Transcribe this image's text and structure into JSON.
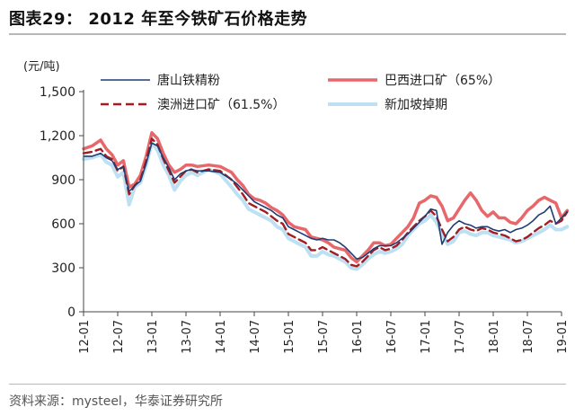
{
  "figure": {
    "title": "图表29： 2012 年至今铁矿石价格走势",
    "source": "资料来源：mysteel，华泰证券研究所"
  },
  "chart_data": {
    "type": "line",
    "y_unit_label": "(元/吨)",
    "ylim": [
      0,
      1500
    ],
    "y_ticks": [
      "0",
      "300",
      "600",
      "900",
      "1,200",
      "1,500"
    ],
    "x_ticks": [
      "12-01",
      "12-07",
      "13-01",
      "13-07",
      "14-01",
      "14-07",
      "15-01",
      "15-07",
      "16-01",
      "16-07",
      "17-01",
      "17-07",
      "18-01",
      "18-07",
      "19-01"
    ],
    "grid": false,
    "legend_position": "top",
    "colors": {
      "tangshan": "#1f3d73",
      "brazil": "#e8676b",
      "australia": "#a11d21",
      "singapore": "#bde0f2",
      "axis": "#444444"
    },
    "x_unit": "months since 2012-01",
    "series": [
      {
        "key": "brazil",
        "name": "巴西进口矿（65%）",
        "points": [
          [
            0,
            1110
          ],
          [
            1.5,
            1130
          ],
          [
            3,
            1170
          ],
          [
            4,
            1110
          ],
          [
            5,
            1070
          ],
          [
            6,
            1000
          ],
          [
            7,
            1030
          ],
          [
            8,
            850
          ],
          [
            9,
            870
          ],
          [
            10,
            930
          ],
          [
            11,
            1060
          ],
          [
            12,
            1220
          ],
          [
            13,
            1180
          ],
          [
            14,
            1080
          ],
          [
            15,
            1000
          ],
          [
            16,
            950
          ],
          [
            17,
            970
          ],
          [
            18,
            1000
          ],
          [
            19,
            1000
          ],
          [
            20,
            990
          ],
          [
            22,
            1000
          ],
          [
            24,
            990
          ],
          [
            26,
            950
          ],
          [
            27,
            900
          ],
          [
            28,
            860
          ],
          [
            29,
            800
          ],
          [
            30,
            770
          ],
          [
            31,
            760
          ],
          [
            32,
            740
          ],
          [
            33,
            710
          ],
          [
            34,
            690
          ],
          [
            35,
            660
          ],
          [
            36,
            610
          ],
          [
            37,
            580
          ],
          [
            38,
            570
          ],
          [
            39,
            560
          ],
          [
            40,
            510
          ],
          [
            41,
            500
          ],
          [
            42,
            490
          ],
          [
            43,
            470
          ],
          [
            44,
            440
          ],
          [
            45,
            430
          ],
          [
            46,
            420
          ],
          [
            47,
            370
          ],
          [
            48,
            340
          ],
          [
            49,
            380
          ],
          [
            50,
            420
          ],
          [
            51,
            470
          ],
          [
            52,
            470
          ],
          [
            53,
            450
          ],
          [
            54,
            460
          ],
          [
            55,
            500
          ],
          [
            56,
            540
          ],
          [
            57,
            580
          ],
          [
            58,
            640
          ],
          [
            59,
            740
          ],
          [
            60,
            760
          ],
          [
            61,
            790
          ],
          [
            62,
            780
          ],
          [
            63,
            720
          ],
          [
            64,
            620
          ],
          [
            65,
            640
          ],
          [
            66,
            700
          ],
          [
            67,
            760
          ],
          [
            68,
            810
          ],
          [
            69,
            760
          ],
          [
            70,
            690
          ],
          [
            71,
            650
          ],
          [
            72,
            680
          ],
          [
            73,
            640
          ],
          [
            74,
            640
          ],
          [
            75,
            610
          ],
          [
            76,
            600
          ],
          [
            77,
            640
          ],
          [
            78,
            690
          ],
          [
            79,
            720
          ],
          [
            80,
            760
          ],
          [
            81,
            780
          ],
          [
            82,
            760
          ],
          [
            83,
            740
          ],
          [
            84,
            640
          ],
          [
            85,
            690
          ]
        ]
      },
      {
        "key": "singapore",
        "name": "新加坡掉期",
        "points": [
          [
            0,
            1040
          ],
          [
            1.5,
            1050
          ],
          [
            3,
            1070
          ],
          [
            4,
            1020
          ],
          [
            5,
            1000
          ],
          [
            6,
            920
          ],
          [
            7,
            950
          ],
          [
            8,
            730
          ],
          [
            9,
            850
          ],
          [
            10,
            880
          ],
          [
            11,
            1000
          ],
          [
            12,
            1150
          ],
          [
            13,
            1100
          ],
          [
            14,
            1000
          ],
          [
            15,
            930
          ],
          [
            16,
            830
          ],
          [
            17,
            890
          ],
          [
            18,
            930
          ],
          [
            19,
            950
          ],
          [
            20,
            930
          ],
          [
            22,
            970
          ],
          [
            24,
            940
          ],
          [
            26,
            850
          ],
          [
            27,
            800
          ],
          [
            28,
            760
          ],
          [
            29,
            700
          ],
          [
            30,
            680
          ],
          [
            31,
            660
          ],
          [
            32,
            640
          ],
          [
            33,
            620
          ],
          [
            34,
            580
          ],
          [
            35,
            560
          ],
          [
            36,
            500
          ],
          [
            37,
            480
          ],
          [
            38,
            460
          ],
          [
            39,
            440
          ],
          [
            40,
            380
          ],
          [
            41,
            380
          ],
          [
            42,
            410
          ],
          [
            43,
            390
          ],
          [
            44,
            380
          ],
          [
            45,
            360
          ],
          [
            46,
            340
          ],
          [
            47,
            300
          ],
          [
            48,
            290
          ],
          [
            49,
            320
          ],
          [
            50,
            360
          ],
          [
            51,
            390
          ],
          [
            52,
            410
          ],
          [
            53,
            400
          ],
          [
            54,
            410
          ],
          [
            55,
            430
          ],
          [
            56,
            460
          ],
          [
            57,
            520
          ],
          [
            58,
            560
          ],
          [
            59,
            600
          ],
          [
            60,
            620
          ],
          [
            61,
            660
          ],
          [
            62,
            610
          ],
          [
            63,
            530
          ],
          [
            64,
            460
          ],
          [
            65,
            480
          ],
          [
            66,
            540
          ],
          [
            67,
            550
          ],
          [
            68,
            530
          ],
          [
            69,
            520
          ],
          [
            70,
            540
          ],
          [
            71,
            540
          ],
          [
            72,
            520
          ],
          [
            73,
            510
          ],
          [
            74,
            500
          ],
          [
            75,
            490
          ],
          [
            76,
            470
          ],
          [
            77,
            480
          ],
          [
            78,
            500
          ],
          [
            79,
            520
          ],
          [
            80,
            540
          ],
          [
            81,
            560
          ],
          [
            82,
            590
          ],
          [
            83,
            560
          ],
          [
            84,
            560
          ],
          [
            85,
            580
          ]
        ]
      },
      {
        "key": "australia",
        "name": "澳洲进口矿（61.5%）",
        "points": [
          [
            0,
            1080
          ],
          [
            1.5,
            1090
          ],
          [
            3,
            1110
          ],
          [
            4,
            1060
          ],
          [
            5,
            1040
          ],
          [
            6,
            960
          ],
          [
            7,
            990
          ],
          [
            8,
            800
          ],
          [
            9,
            860
          ],
          [
            10,
            900
          ],
          [
            11,
            1030
          ],
          [
            12,
            1180
          ],
          [
            13,
            1140
          ],
          [
            14,
            1040
          ],
          [
            15,
            960
          ],
          [
            16,
            880
          ],
          [
            17,
            920
          ],
          [
            18,
            960
          ],
          [
            19,
            970
          ],
          [
            20,
            950
          ],
          [
            22,
            970
          ],
          [
            24,
            960
          ],
          [
            26,
            900
          ],
          [
            27,
            850
          ],
          [
            28,
            800
          ],
          [
            29,
            740
          ],
          [
            30,
            720
          ],
          [
            31,
            700
          ],
          [
            32,
            680
          ],
          [
            33,
            650
          ],
          [
            34,
            620
          ],
          [
            35,
            600
          ],
          [
            36,
            530
          ],
          [
            37,
            510
          ],
          [
            38,
            490
          ],
          [
            39,
            470
          ],
          [
            40,
            420
          ],
          [
            41,
            420
          ],
          [
            42,
            440
          ],
          [
            43,
            420
          ],
          [
            44,
            400
          ],
          [
            45,
            380
          ],
          [
            46,
            360
          ],
          [
            47,
            320
          ],
          [
            48,
            310
          ],
          [
            49,
            340
          ],
          [
            50,
            380
          ],
          [
            51,
            420
          ],
          [
            52,
            440
          ],
          [
            53,
            420
          ],
          [
            54,
            430
          ],
          [
            55,
            450
          ],
          [
            56,
            490
          ],
          [
            57,
            540
          ],
          [
            58,
            580
          ],
          [
            59,
            620
          ],
          [
            60,
            650
          ],
          [
            61,
            690
          ],
          [
            62,
            650
          ],
          [
            63,
            560
          ],
          [
            64,
            480
          ],
          [
            65,
            510
          ],
          [
            66,
            560
          ],
          [
            67,
            580
          ],
          [
            68,
            560
          ],
          [
            69,
            550
          ],
          [
            70,
            570
          ],
          [
            71,
            560
          ],
          [
            72,
            540
          ],
          [
            73,
            530
          ],
          [
            74,
            520
          ],
          [
            75,
            500
          ],
          [
            76,
            480
          ],
          [
            77,
            490
          ],
          [
            78,
            510
          ],
          [
            79,
            540
          ],
          [
            80,
            570
          ],
          [
            81,
            590
          ],
          [
            82,
            620
          ],
          [
            83,
            600
          ],
          [
            84,
            620
          ],
          [
            85,
            680
          ]
        ]
      },
      {
        "key": "tangshan",
        "name": "唐山铁精粉",
        "points": [
          [
            0,
            1060
          ],
          [
            1.5,
            1060
          ],
          [
            3,
            1080
          ],
          [
            4,
            1050
          ],
          [
            5,
            1030
          ],
          [
            6,
            970
          ],
          [
            7,
            990
          ],
          [
            8,
            820
          ],
          [
            9,
            860
          ],
          [
            10,
            890
          ],
          [
            11,
            1010
          ],
          [
            12,
            1150
          ],
          [
            13,
            1130
          ],
          [
            14,
            1050
          ],
          [
            15,
            980
          ],
          [
            16,
            900
          ],
          [
            17,
            940
          ],
          [
            18,
            960
          ],
          [
            19,
            970
          ],
          [
            20,
            960
          ],
          [
            22,
            960
          ],
          [
            24,
            950
          ],
          [
            26,
            900
          ],
          [
            27,
            870
          ],
          [
            28,
            830
          ],
          [
            29,
            790
          ],
          [
            30,
            750
          ],
          [
            31,
            730
          ],
          [
            32,
            710
          ],
          [
            33,
            690
          ],
          [
            34,
            660
          ],
          [
            35,
            640
          ],
          [
            36,
            580
          ],
          [
            37,
            560
          ],
          [
            38,
            540
          ],
          [
            39,
            520
          ],
          [
            40,
            500
          ],
          [
            41,
            490
          ],
          [
            42,
            500
          ],
          [
            43,
            490
          ],
          [
            44,
            490
          ],
          [
            45,
            470
          ],
          [
            46,
            440
          ],
          [
            47,
            400
          ],
          [
            48,
            360
          ],
          [
            49,
            370
          ],
          [
            50,
            400
          ],
          [
            51,
            430
          ],
          [
            52,
            450
          ],
          [
            53,
            450
          ],
          [
            54,
            450
          ],
          [
            55,
            470
          ],
          [
            56,
            500
          ],
          [
            57,
            530
          ],
          [
            58,
            570
          ],
          [
            59,
            610
          ],
          [
            60,
            650
          ],
          [
            61,
            700
          ],
          [
            62,
            690
          ],
          [
            63,
            460
          ],
          [
            64,
            540
          ],
          [
            65,
            590
          ],
          [
            66,
            620
          ],
          [
            67,
            600
          ],
          [
            68,
            590
          ],
          [
            69,
            570
          ],
          [
            70,
            580
          ],
          [
            71,
            580
          ],
          [
            72,
            560
          ],
          [
            73,
            550
          ],
          [
            74,
            560
          ],
          [
            75,
            540
          ],
          [
            76,
            560
          ],
          [
            77,
            570
          ],
          [
            78,
            590
          ],
          [
            79,
            620
          ],
          [
            80,
            660
          ],
          [
            81,
            680
          ],
          [
            82,
            720
          ],
          [
            83,
            600
          ],
          [
            84,
            640
          ],
          [
            85,
            680
          ]
        ]
      }
    ]
  }
}
